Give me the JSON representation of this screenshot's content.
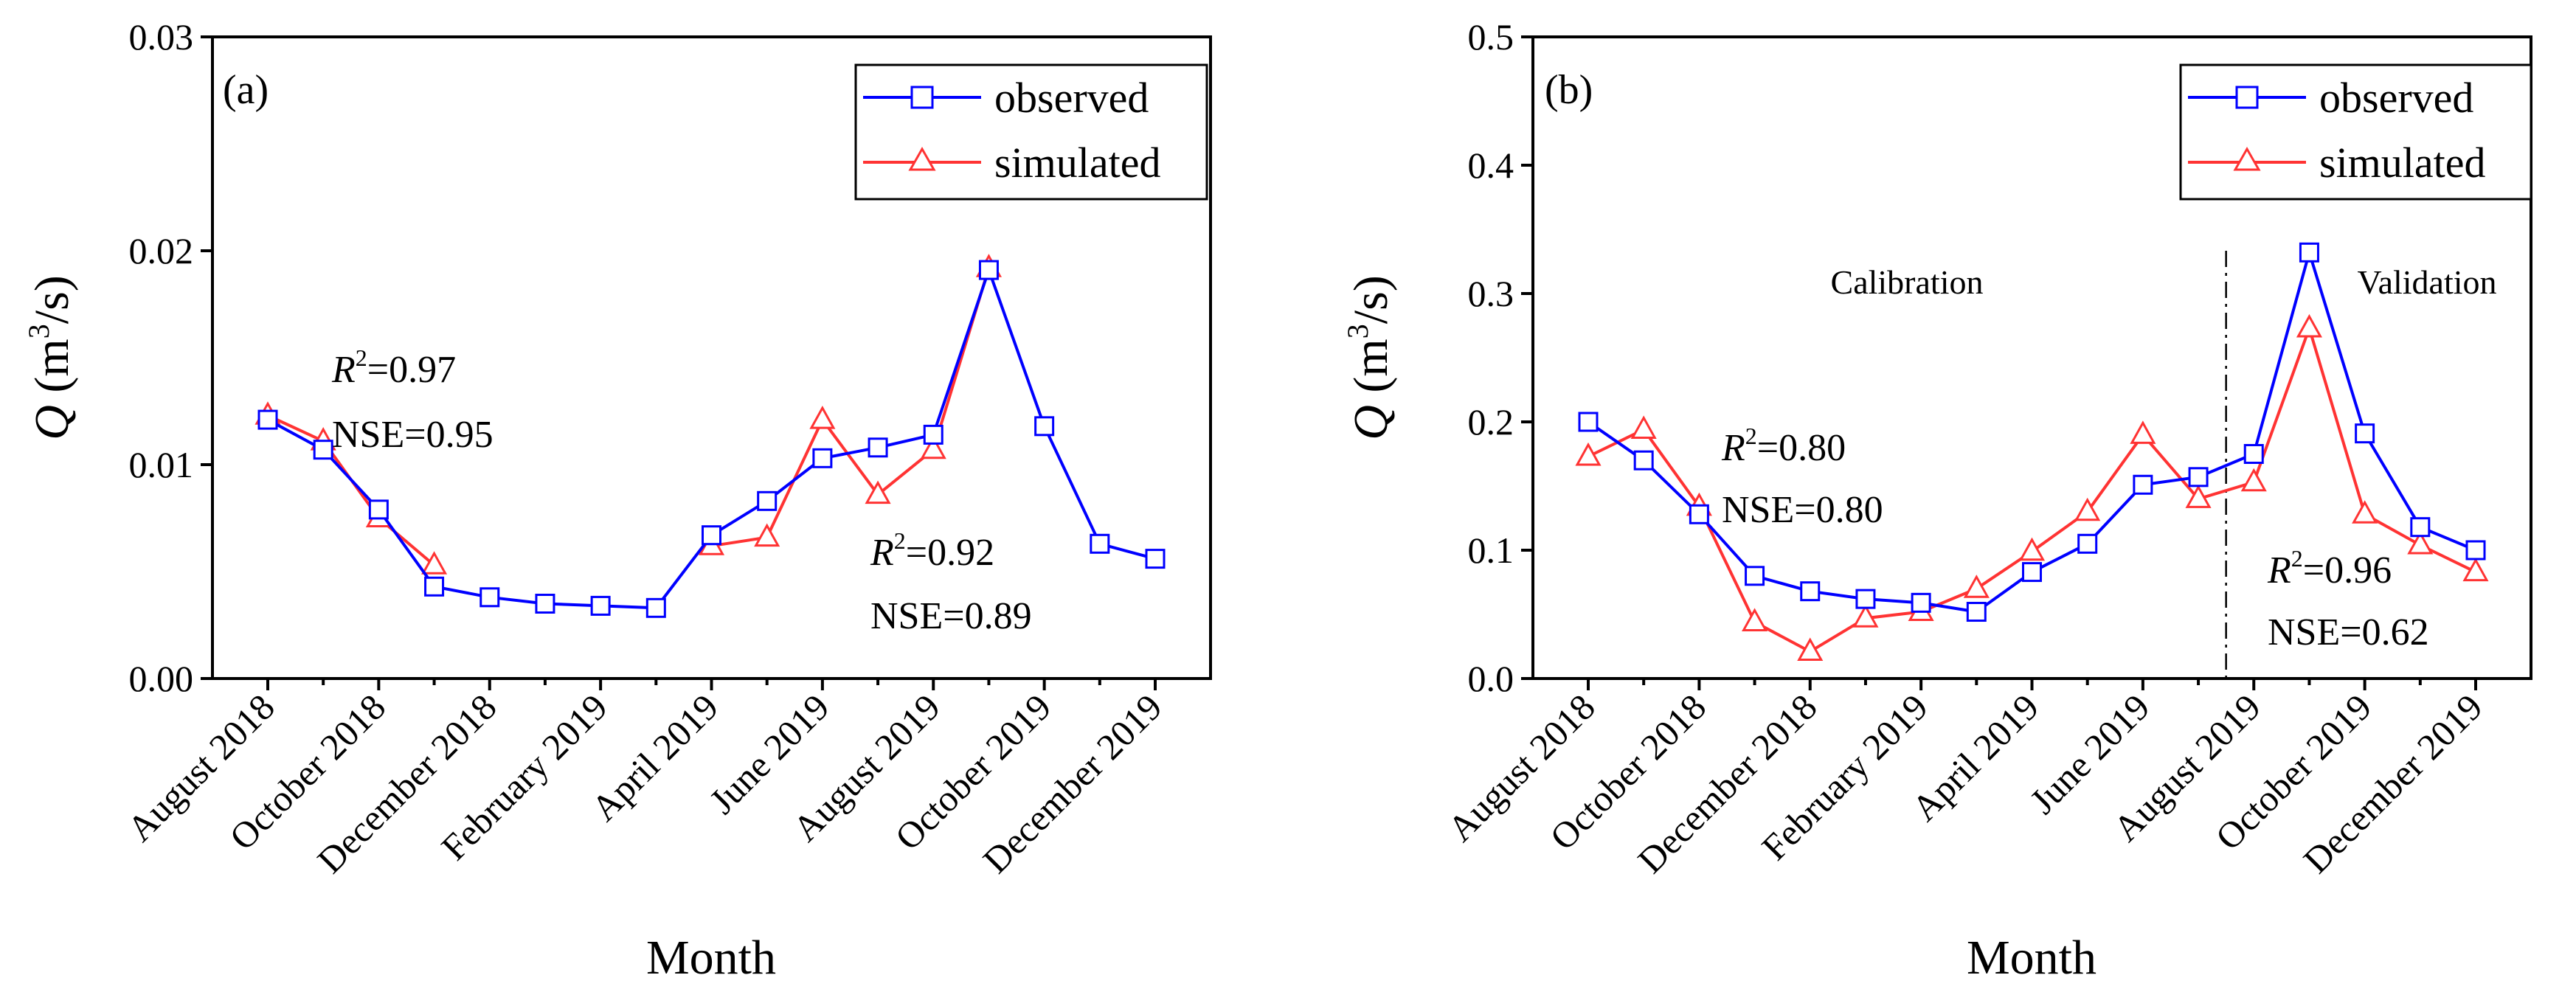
{
  "chart_data": [
    {
      "type": "line",
      "panel_label": "(a)",
      "xlabel": "Month",
      "ylabel": {
        "symbol": "Q",
        "unit_prefix": "(m",
        "unit_power": "3",
        "unit_suffix": "/s)"
      },
      "ylim": [
        0,
        0.03
      ],
      "yticks": [
        0,
        0.01,
        0.02,
        0.03
      ],
      "ytick_labels": [
        "0.00",
        "0.01",
        "0.02",
        "0.03"
      ],
      "categories": [
        "August 2018",
        "September 2018",
        "October 2018",
        "November 2018",
        "December 2018",
        "January 2019",
        "February 2019",
        "March 2019",
        "April 2019",
        "May 2019",
        "June 2019",
        "July 2019",
        "August 2019",
        "September 2019",
        "October 2019",
        "November 2019",
        "December 2019"
      ],
      "xtick_labels": [
        "August 2018",
        "October 2018",
        "December 2018",
        "February 2019",
        "April 2019",
        "June 2019",
        "August 2019",
        "October 2019",
        "December 2019"
      ],
      "series": [
        {
          "name": "observed",
          "color": "#0000ff",
          "marker": "square",
          "values": [
            0.0121,
            0.0107,
            0.0079,
            0.0043,
            0.0038,
            0.0035,
            0.0034,
            0.0033,
            0.0067,
            0.0083,
            0.0103,
            0.0108,
            0.0114,
            0.0191,
            0.0118,
            0.0063,
            0.0056
          ]
        },
        {
          "name": "simulated",
          "color": "#ff3333",
          "marker": "triangle",
          "values": [
            0.0123,
            0.0111,
            0.0075,
            0.0053,
            null,
            null,
            null,
            null,
            0.0062,
            0.0066,
            0.0121,
            0.0086,
            0.0107,
            0.0192,
            null,
            null,
            null
          ]
        }
      ],
      "legend": {
        "position": "top-right",
        "entries": [
          "observed",
          "simulated"
        ]
      },
      "annotations": [
        {
          "r2_label": "R",
          "r2_power": "2",
          "r2_value": "=0.97",
          "nse": "NSE=0.95"
        },
        {
          "r2_label": "R",
          "r2_power": "2",
          "r2_value": "=0.92",
          "nse": "NSE=0.89"
        }
      ]
    },
    {
      "type": "line",
      "panel_label": "(b)",
      "xlabel": "Month",
      "ylabel": {
        "symbol": "Q",
        "unit_prefix": "(m",
        "unit_power": "3",
        "unit_suffix": "/s)"
      },
      "ylim": [
        0,
        0.5
      ],
      "yticks": [
        0,
        0.1,
        0.2,
        0.3,
        0.4,
        0.5
      ],
      "ytick_labels": [
        "0.0",
        "0.1",
        "0.2",
        "0.3",
        "0.4",
        "0.5"
      ],
      "categories": [
        "August 2018",
        "September 2018",
        "October 2018",
        "November 2018",
        "December 2018",
        "January 2019",
        "February 2019",
        "March 2019",
        "April 2019",
        "May 2019",
        "June 2019",
        "July 2019",
        "August 2019",
        "September 2019",
        "October 2019",
        "November 2019",
        "December 2019"
      ],
      "xtick_labels": [
        "August 2018",
        "October 2018",
        "December 2018",
        "February 2019",
        "April 2019",
        "June 2019",
        "August 2019",
        "October 2019",
        "December 2019"
      ],
      "series": [
        {
          "name": "observed",
          "color": "#0000ff",
          "marker": "square",
          "values": [
            0.2,
            0.17,
            0.128,
            0.08,
            0.068,
            0.062,
            0.059,
            0.052,
            0.083,
            0.105,
            0.151,
            0.157,
            0.175,
            0.332,
            0.191,
            0.118,
            0.1
          ]
        },
        {
          "name": "simulated",
          "color": "#ff3333",
          "marker": "triangle",
          "values": [
            0.173,
            0.194,
            0.134,
            0.044,
            0.021,
            0.047,
            0.052,
            0.07,
            0.099,
            0.13,
            0.19,
            0.14,
            0.153,
            0.273,
            0.128,
            0.104,
            0.083
          ]
        }
      ],
      "divider_after_index": 11.5,
      "phase_labels": {
        "calibration": "Calibration",
        "validation": "Validation"
      },
      "legend": {
        "position": "top-right",
        "entries": [
          "observed",
          "simulated"
        ]
      },
      "annotations": [
        {
          "r2_label": "R",
          "r2_power": "2",
          "r2_value": "=0.80",
          "nse": "NSE=0.80"
        },
        {
          "r2_label": "R",
          "r2_power": "2",
          "r2_value": "=0.96",
          "nse": "NSE=0.62"
        }
      ]
    }
  ]
}
